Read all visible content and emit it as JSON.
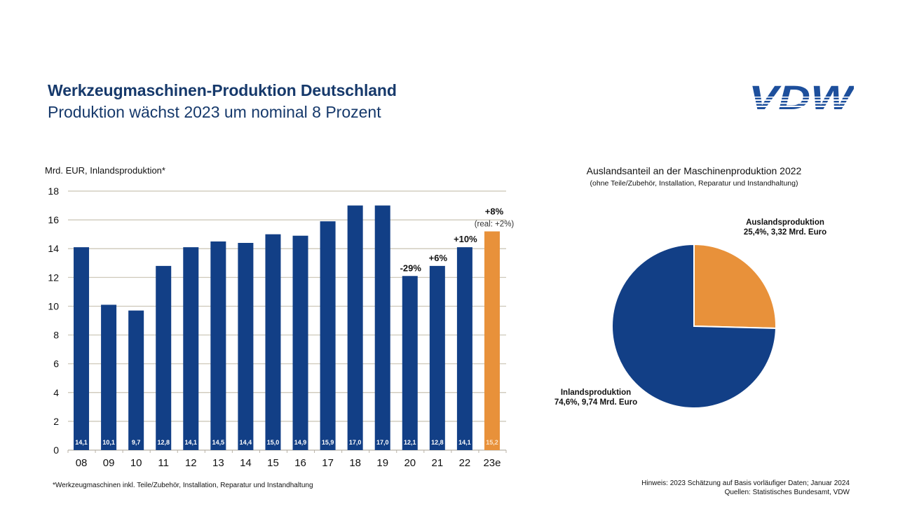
{
  "header": {
    "title": "Werkzeugmaschinen-Produktion Deutschland",
    "subtitle": "Produktion wächst 2023 um nominal 8 Prozent",
    "logo_text": "VDW",
    "logo_icon": "vdw-logo-icon"
  },
  "colors": {
    "primary_blue": "#123f86",
    "estimate_orange": "#e8913a",
    "title_blue": "#16396b",
    "grid": "#c9c3b3"
  },
  "chart_data": [
    {
      "type": "bar",
      "title": "",
      "ylabel": "Mrd. EUR, Inlandsproduktion*",
      "xlabel": "",
      "ylim": [
        0,
        18
      ],
      "yticks": [
        0,
        2,
        4,
        6,
        8,
        10,
        12,
        14,
        16,
        18
      ],
      "ytick_labels": [
        "0",
        "2",
        "4",
        "6",
        "8",
        "10",
        "12",
        "14",
        "16",
        "18"
      ],
      "grid": true,
      "categories": [
        "08",
        "09",
        "10",
        "11",
        "12",
        "13",
        "14",
        "15",
        "16",
        "17",
        "18",
        "19",
        "20",
        "21",
        "22",
        "23e"
      ],
      "values": [
        14.1,
        10.1,
        9.7,
        12.8,
        14.1,
        14.5,
        14.4,
        15.0,
        14.9,
        15.9,
        17.0,
        17.0,
        12.1,
        12.8,
        14.1,
        15.2
      ],
      "value_labels": [
        "14,1",
        "10,1",
        "9,7",
        "12,8",
        "14,1",
        "14,5",
        "14,4",
        "15,0",
        "14,9",
        "15,9",
        "17,0",
        "17,0",
        "12,1",
        "12,8",
        "14,1",
        "15,2"
      ],
      "estimate_flags": [
        false,
        false,
        false,
        false,
        false,
        false,
        false,
        false,
        false,
        false,
        false,
        false,
        false,
        false,
        false,
        true
      ],
      "annotations": [
        {
          "category": "20",
          "text": "-29%"
        },
        {
          "category": "21",
          "text": "+6%"
        },
        {
          "category": "22",
          "text": "+10%"
        },
        {
          "category": "23e",
          "text": "+8%",
          "subtext": "(real: +2%)"
        }
      ]
    },
    {
      "type": "pie",
      "title": "Auslandsanteil an der Maschinenproduktion 2022",
      "subtitle": "(ohne Teile/Zubehör, Installation, Reparatur und Instandhaltung)",
      "slices": [
        {
          "name": "Auslandsproduktion",
          "value": 25.4,
          "amount": "3,32 Mrd. Euro",
          "label_line1": "Auslandsproduktion",
          "label_line2": "25,4%, 3,32 Mrd. Euro",
          "color": "#e8913a"
        },
        {
          "name": "Inlandsproduktion",
          "value": 74.6,
          "amount": "9,74 Mrd. Euro",
          "label_line1": "Inlandsproduktion",
          "label_line2": "74,6%, 9,74 Mrd. Euro",
          "color": "#123f86"
        }
      ]
    }
  ],
  "footer": {
    "footnote": "*Werkzeugmaschinen inkl. Teile/Zubehör, Installation, Reparatur und Instandhaltung",
    "hint": "Hinweis: 2023 Schätzung auf Basis vorläufiger Daten; Januar 2024",
    "sources": "Quellen: Statistisches Bundesamt, VDW"
  }
}
